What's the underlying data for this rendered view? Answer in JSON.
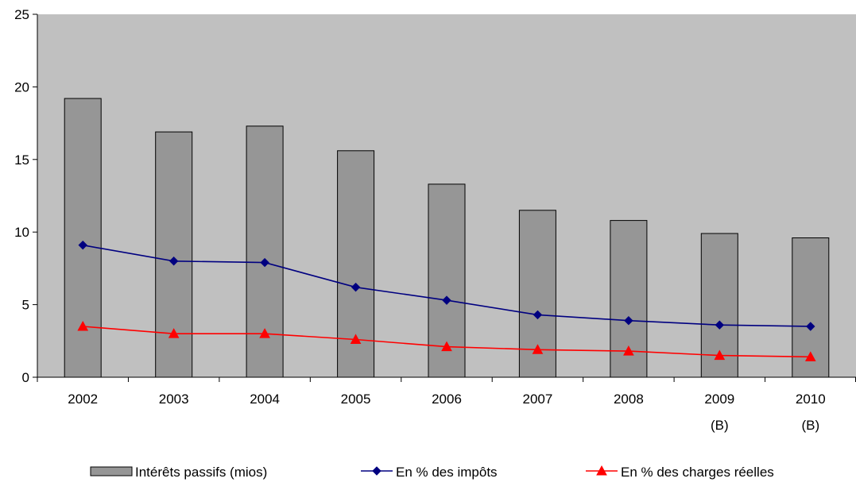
{
  "chart_data": {
    "type": "bar",
    "categories": [
      "2002",
      "2003",
      "2004",
      "2005",
      "2006",
      "2007",
      "2008",
      "2009",
      "2010"
    ],
    "category_sublabels": [
      "",
      "",
      "",
      "",
      "",
      "",
      "",
      "(B)",
      "(B)"
    ],
    "series": [
      {
        "name": "Intérêts passifs (mios)",
        "type": "bar",
        "color": "#969696",
        "values": [
          19.2,
          16.9,
          17.3,
          15.6,
          13.3,
          11.5,
          10.8,
          9.9,
          9.6
        ]
      },
      {
        "name": "En % des impôts",
        "type": "line",
        "marker": "diamond",
        "color": "#000080",
        "values": [
          9.1,
          8.0,
          7.9,
          6.2,
          5.3,
          4.3,
          3.9,
          3.6,
          3.5
        ]
      },
      {
        "name": "En % des charges réelles",
        "type": "line",
        "marker": "triangle",
        "color": "#ff0000",
        "values": [
          3.5,
          3.0,
          3.0,
          2.6,
          2.1,
          1.9,
          1.8,
          1.5,
          1.4
        ]
      }
    ],
    "ylim": [
      0,
      25
    ],
    "yticks": [
      "0",
      "5",
      "10",
      "15",
      "20",
      "25"
    ],
    "title": "",
    "xlabel": "",
    "ylabel": "",
    "grid": false,
    "plot_background": "#c0c0c0",
    "legend_position": "bottom"
  }
}
